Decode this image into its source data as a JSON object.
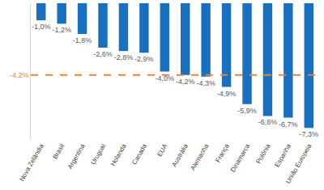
{
  "chart_data": {
    "type": "bar",
    "categories": [
      "Nova Zelândia",
      "Brasil",
      "Argentina",
      "Uruguai",
      "Holanda",
      "Canada",
      "EUA",
      "Austrália",
      "Alemanha",
      "França",
      "Dinamarca",
      "Polônia",
      "Espanha",
      "União Europeia"
    ],
    "values": [
      -1.0,
      -1.2,
      -1.8,
      -2.6,
      -2.8,
      -2.9,
      -4.0,
      -4.2,
      -4.3,
      -4.9,
      -5.9,
      -6.6,
      -6.7,
      -7.3
    ],
    "value_labels": [
      "-1,0%",
      "-1,2%",
      "-1,8%",
      "-2,6%",
      "-2,8%",
      "-2,9%",
      "-4,0%",
      "-4,2%",
      "-4,3%",
      "-4,9%",
      "-5,9%",
      "-6,6%",
      "-6,7%",
      "-7,3%"
    ],
    "color": "#1a70c0",
    "data_labels": true,
    "ylim": [
      -8,
      0
    ],
    "tick_labels": "x",
    "grid": false,
    "annotations": [
      {
        "value": -4.2,
        "label": "-4,2%",
        "color": "#e8833a",
        "line_style": "dash"
      }
    ]
  }
}
